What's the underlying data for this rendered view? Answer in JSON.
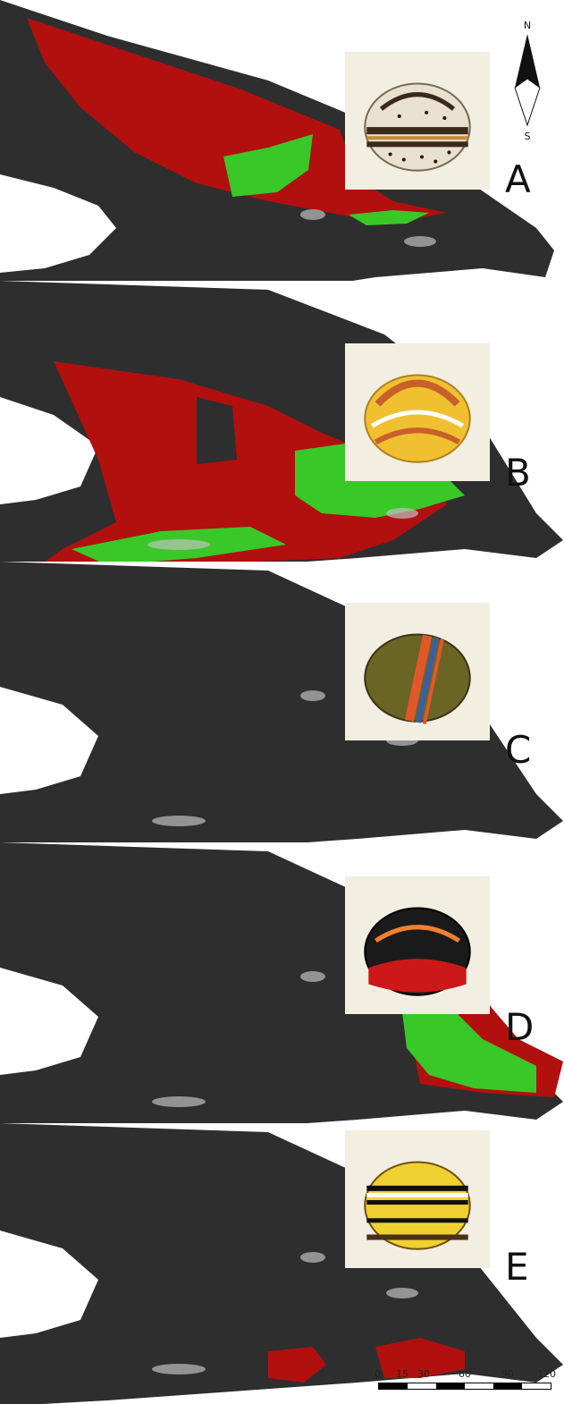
{
  "north_arrow": {
    "north_label": "N",
    "south_label": "S"
  },
  "panels": [
    {
      "letter": "A",
      "shell": {
        "base": "#e9e1cf",
        "bands": [
          "#3a2a1a",
          "#c48a3a",
          "#3a2a1a"
        ],
        "spots": true
      }
    },
    {
      "letter": "B",
      "shell": {
        "base": "#f0c030",
        "bands": [
          "#c8602a",
          "#ffffff",
          "#c8602a"
        ],
        "spots": false
      }
    },
    {
      "letter": "C",
      "shell": {
        "base": "#6a6425",
        "bands": [
          "#e0582a",
          "#3a5fa0",
          "#e0582a"
        ],
        "spots": false
      }
    },
    {
      "letter": "D",
      "shell": {
        "base": "#1a1a1a",
        "bands": [
          "#f08030",
          "#cc1818",
          "#cc1818"
        ],
        "spots": false
      }
    },
    {
      "letter": "E",
      "shell": {
        "base": "#f0d030",
        "bands": [
          "#111111",
          "#ffffff",
          "#111111"
        ],
        "spots": false
      }
    }
  ],
  "scale_bar": {
    "labels": [
      "0",
      "15",
      "30",
      "60",
      "90",
      "120"
    ]
  },
  "legend_colors": {
    "land": "#2e2e2e",
    "suitable": "#b20f0f",
    "occurrence": "#39c828",
    "water": "#ffffff"
  }
}
